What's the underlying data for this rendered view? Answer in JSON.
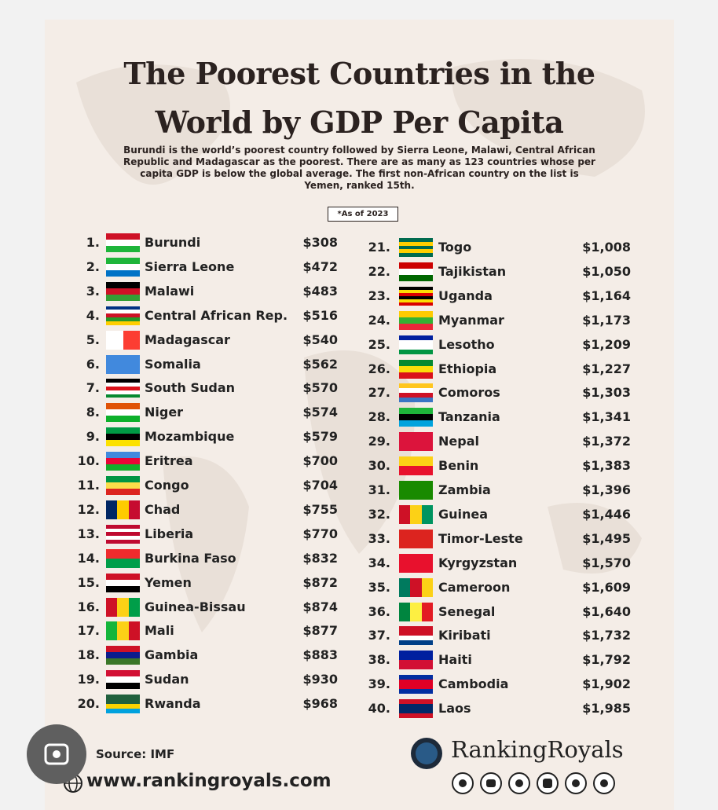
{
  "header": {
    "title_lines": [
      "The Poorest Countries in the",
      "World by GDP Per Capita"
    ],
    "subtitle_lines": [
      "Burundi is the world’s poorest country followed by Sierra Leone, Malawi, Central African",
      "Republic and Madagascar as the poorest. There are as many as 123 countries whose per",
      "capita GDP is below the global average. The first non-African country on the list is",
      "Yemen, ranked 15th."
    ],
    "note": "*As of 2023"
  },
  "rankings": {
    "left": [
      {
        "rank": "1.",
        "country": "Burundi",
        "gdp": "$308"
      },
      {
        "rank": "2.",
        "country": "Sierra Leone",
        "gdp": "$472"
      },
      {
        "rank": "3.",
        "country": "Malawi",
        "gdp": "$483"
      },
      {
        "rank": "4.",
        "country": "Central African Rep.",
        "gdp": "$516"
      },
      {
        "rank": "5.",
        "country": "Madagascar",
        "gdp": "$540"
      },
      {
        "rank": "6.",
        "country": "Somalia",
        "gdp": "$562"
      },
      {
        "rank": "7.",
        "country": "South Sudan",
        "gdp": "$570"
      },
      {
        "rank": "8.",
        "country": "Niger",
        "gdp": "$574"
      },
      {
        "rank": "9.",
        "country": "Mozambique",
        "gdp": "$579"
      },
      {
        "rank": "10.",
        "country": "Eritrea",
        "gdp": "$700"
      },
      {
        "rank": "11.",
        "country": "Congo",
        "gdp": "$704"
      },
      {
        "rank": "12.",
        "country": "Chad",
        "gdp": "$755"
      },
      {
        "rank": "13.",
        "country": "Liberia",
        "gdp": "$770"
      },
      {
        "rank": "14.",
        "country": "Burkina Faso",
        "gdp": "$832"
      },
      {
        "rank": "15.",
        "country": "Yemen",
        "gdp": "$872"
      },
      {
        "rank": "16.",
        "country": "Guinea-Bissau",
        "gdp": "$874"
      },
      {
        "rank": "17.",
        "country": "Mali",
        "gdp": "$877"
      },
      {
        "rank": "18.",
        "country": "Gambia",
        "gdp": "$883"
      },
      {
        "rank": "19.",
        "country": "Sudan",
        "gdp": "$930"
      },
      {
        "rank": "20.",
        "country": "Rwanda",
        "gdp": "$968"
      }
    ],
    "right": [
      {
        "rank": "21.",
        "country": "Togo",
        "gdp": "$1,008"
      },
      {
        "rank": "22.",
        "country": "Tajikistan",
        "gdp": "$1,050"
      },
      {
        "rank": "23.",
        "country": "Uganda",
        "gdp": "$1,164"
      },
      {
        "rank": "24.",
        "country": "Myanmar",
        "gdp": "$1,173"
      },
      {
        "rank": "25.",
        "country": "Lesotho",
        "gdp": "$1,209"
      },
      {
        "rank": "26.",
        "country": "Ethiopia",
        "gdp": "$1,227"
      },
      {
        "rank": "27.",
        "country": "Comoros",
        "gdp": "$1,303"
      },
      {
        "rank": "28.",
        "country": "Tanzania",
        "gdp": "$1,341"
      },
      {
        "rank": "29.",
        "country": "Nepal",
        "gdp": "$1,372"
      },
      {
        "rank": "30.",
        "country": "Benin",
        "gdp": "$1,383"
      },
      {
        "rank": "31.",
        "country": "Zambia",
        "gdp": "$1,396"
      },
      {
        "rank": "32.",
        "country": "Guinea",
        "gdp": "$1,446"
      },
      {
        "rank": "33.",
        "country": "Timor-Leste",
        "gdp": "$1,495"
      },
      {
        "rank": "34.",
        "country": "Kyrgyzstan",
        "gdp": "$1,570"
      },
      {
        "rank": "35.",
        "country": "Cameroon",
        "gdp": "$1,609"
      },
      {
        "rank": "36.",
        "country": "Senegal",
        "gdp": "$1,640"
      },
      {
        "rank": "37.",
        "country": "Kiribati",
        "gdp": "$1,732"
      },
      {
        "rank": "38.",
        "country": "Haiti",
        "gdp": "$1,792"
      },
      {
        "rank": "39.",
        "country": "Cambodia",
        "gdp": "$1,902"
      },
      {
        "rank": "40.",
        "country": "Laos",
        "gdp": "$1,985"
      }
    ]
  },
  "footer": {
    "source": "Source: IMF",
    "website": "www.rankingroyals.com",
    "brand": "RankingRoyals"
  }
}
